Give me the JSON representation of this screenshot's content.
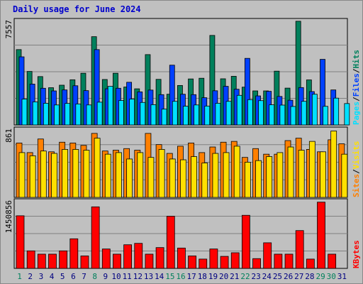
{
  "title": "Daily usage for June 2024",
  "chart_data": [
    {
      "type": "bar",
      "panel": "hits-files-pages",
      "max_label": "7557",
      "ymax": 7557,
      "legend": [
        {
          "text": "Pages",
          "color": "#00e0ff"
        },
        {
          "text": "/",
          "color": "#000000"
        },
        {
          "text": "Files",
          "color": "#0040ff"
        },
        {
          "text": "/",
          "color": "#000000"
        },
        {
          "text": "Hits",
          "color": "#00805c"
        }
      ],
      "categories": [
        "1",
        "2",
        "3",
        "4",
        "5",
        "6",
        "7",
        "8",
        "9",
        "10",
        "11",
        "12",
        "13",
        "14",
        "15",
        "16",
        "17",
        "18",
        "19",
        "20",
        "21",
        "22",
        "23",
        "24",
        "25",
        "26",
        "27",
        "28",
        "29",
        "30",
        "31"
      ],
      "series": [
        {
          "name": "Hits",
          "color": "#00805c",
          "values": [
            5420,
            3850,
            3480,
            2680,
            2860,
            3250,
            3720,
            6350,
            3270,
            3720,
            2730,
            2600,
            5060,
            3280,
            2210,
            2840,
            3310,
            3360,
            6440,
            3320,
            3500,
            2720,
            2450,
            2450,
            3870,
            2650,
            7460,
            3240,
            0,
            0,
            0
          ]
        },
        {
          "name": "Files",
          "color": "#0040ff",
          "values": [
            4900,
            2940,
            2640,
            2450,
            2520,
            2820,
            2470,
            5420,
            2600,
            2640,
            3070,
            2380,
            2510,
            2180,
            4300,
            2210,
            2180,
            1960,
            2460,
            2780,
            2570,
            4790,
            2090,
            2420,
            2050,
            1780,
            2690,
            2400,
            4720,
            2520,
            0
          ]
        },
        {
          "name": "Pages",
          "color": "#00e0ff",
          "values": [
            1860,
            1660,
            1560,
            1440,
            1550,
            1510,
            1440,
            1640,
            2780,
            1760,
            1860,
            1620,
            1460,
            1140,
            1700,
            1350,
            1440,
            1360,
            1560,
            1700,
            2130,
            1820,
            1750,
            1450,
            1430,
            1330,
            1700,
            2210,
            1340,
            1930,
            1540
          ]
        }
      ]
    },
    {
      "type": "bar",
      "panel": "visits-sites",
      "max_label": "861",
      "ymax": 861,
      "legend": [
        {
          "text": "Sites",
          "color": "#ff8000"
        },
        {
          "text": "/",
          "color": "#000000"
        },
        {
          "text": "Visits",
          "color": "#ffe000"
        }
      ],
      "categories": [
        "1",
        "2",
        "3",
        "4",
        "5",
        "6",
        "7",
        "8",
        "9",
        "10",
        "11",
        "12",
        "13",
        "14",
        "15",
        "16",
        "17",
        "18",
        "19",
        "20",
        "21",
        "22",
        "23",
        "24",
        "25",
        "26",
        "27",
        "28",
        "29",
        "30",
        "31"
      ],
      "series": [
        {
          "name": "Visits",
          "color": "#ff8000",
          "values": [
            680,
            560,
            730,
            570,
            690,
            680,
            650,
            800,
            580,
            590,
            610,
            590,
            800,
            660,
            550,
            640,
            680,
            560,
            630,
            690,
            700,
            500,
            610,
            540,
            540,
            710,
            740,
            600,
            570,
            720,
            670
          ]
        },
        {
          "name": "Sites",
          "color": "#ffe000",
          "values": [
            560,
            520,
            580,
            550,
            600,
            600,
            590,
            740,
            540,
            560,
            480,
            560,
            500,
            600,
            480,
            470,
            510,
            430,
            550,
            560,
            640,
            440,
            460,
            510,
            560,
            630,
            590,
            700,
            570,
            830,
            540
          ]
        }
      ]
    },
    {
      "type": "bar",
      "panel": "kbytes",
      "max_label": "1450856",
      "ymax": 1450856,
      "legend": [
        {
          "text": "KBytes",
          "color": "#ff0000"
        }
      ],
      "categories": [
        "1",
        "2",
        "3",
        "4",
        "5",
        "6",
        "7",
        "8",
        "9",
        "10",
        "11",
        "12",
        "13",
        "14",
        "15",
        "16",
        "17",
        "18",
        "19",
        "20",
        "21",
        "22",
        "23",
        "24",
        "25",
        "26",
        "27",
        "28",
        "29",
        "30",
        "31"
      ],
      "series": [
        {
          "name": "KBytes",
          "color": "#ff0000",
          "values": [
            1120000,
            373000,
            303000,
            303000,
            373000,
            630000,
            265000,
            1310000,
            413000,
            303000,
            503000,
            533000,
            303000,
            443000,
            1110000,
            433000,
            265000,
            198000,
            413000,
            256000,
            333000,
            1130000,
            208000,
            545000,
            303000,
            303000,
            805000,
            198000,
            1410000,
            303000,
            0
          ]
        }
      ],
      "x_label_colors": {
        "weekend": "#00805c",
        "weekday": "#000080"
      },
      "weekend_days": [
        "1",
        "8",
        "15",
        "16",
        "22",
        "29",
        "30"
      ]
    }
  ]
}
